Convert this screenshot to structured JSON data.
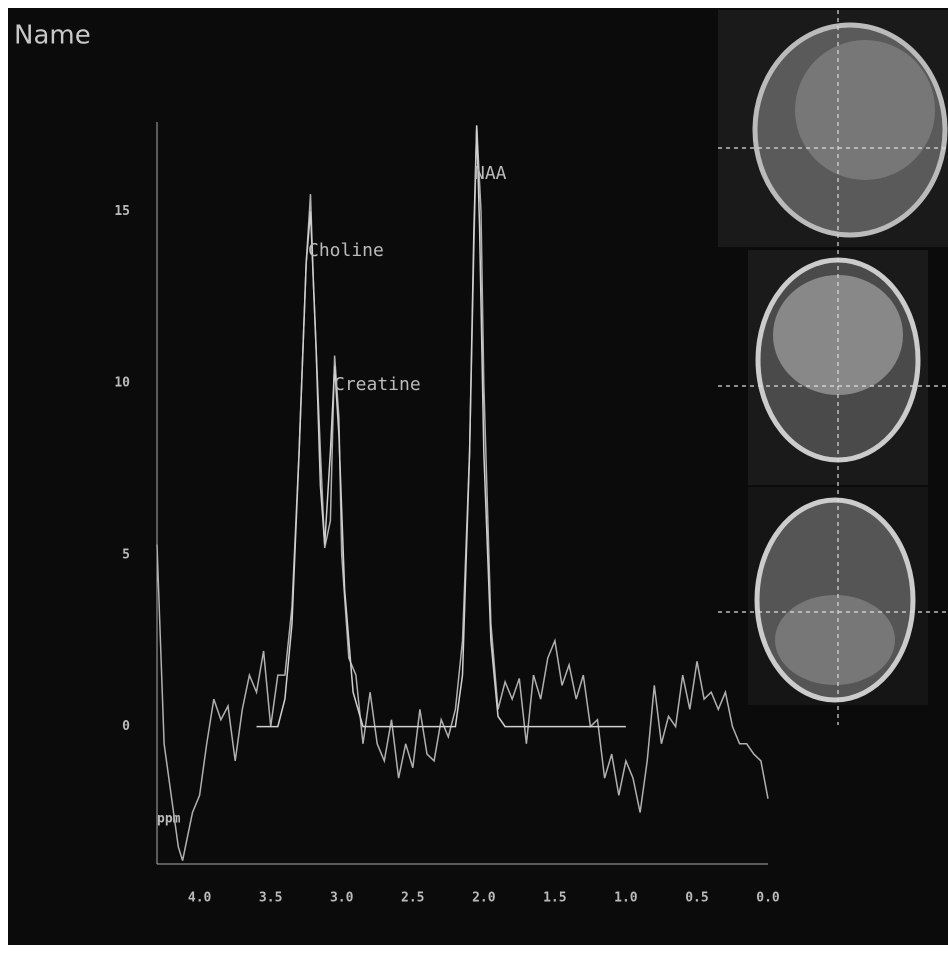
{
  "chart_data": {
    "type": "line",
    "title": "Name",
    "x_label": "ppm",
    "xlim": [
      4.3,
      0
    ],
    "ylim": [
      -4,
      17.6
    ],
    "xticks": [
      {
        "value": 4,
        "label": "4.0"
      },
      3.5,
      {
        "value": 3,
        "label": "3.0"
      },
      2.5,
      {
        "value": 2,
        "label": "2.0"
      },
      1.5,
      {
        "value": 1,
        "label": "1.0"
      },
      0.5,
      {
        "value": 0,
        "label": "0.0"
      }
    ],
    "yticks": [
      0,
      5,
      10,
      15
    ],
    "grid": false,
    "annotations": [
      "Choline",
      "Creatine",
      "NAA"
    ],
    "series": [
      {
        "color": "#b0b0b0",
        "x": [
          4.3,
          4.25,
          4.2,
          4.15,
          4.12,
          4.1,
          4.05,
          4.0,
          3.95,
          3.9,
          3.85,
          3.8,
          3.75,
          3.7,
          3.65,
          3.6,
          3.55,
          3.5,
          3.45,
          3.4,
          3.35,
          3.3,
          3.25,
          3.22,
          3.2,
          3.15,
          3.12,
          3.08,
          3.05,
          3.02,
          3.0,
          2.95,
          2.9,
          2.85,
          2.8,
          2.75,
          2.7,
          2.65,
          2.6,
          2.55,
          2.5,
          2.45,
          2.4,
          2.35,
          2.3,
          2.25,
          2.2,
          2.15,
          2.1,
          2.07,
          2.05,
          2.02,
          2.0,
          1.95,
          1.9,
          1.85,
          1.8,
          1.75,
          1.7,
          1.65,
          1.6,
          1.55,
          1.5,
          1.45,
          1.4,
          1.35,
          1.3,
          1.25,
          1.2,
          1.15,
          1.1,
          1.05,
          1.0,
          0.95,
          0.9,
          0.85,
          0.8,
          0.75,
          0.7,
          0.65,
          0.6,
          0.55,
          0.5,
          0.45,
          0.4,
          0.35,
          0.3,
          0.25,
          0.2,
          0.15,
          0.1,
          0.05,
          0.0
        ],
        "values": [
          5.3,
          -0.5,
          -2,
          -3.5,
          -3.9,
          -3.5,
          -2.5,
          -2,
          -0.5,
          0.8,
          0.2,
          0.6,
          -1,
          0.5,
          1.5,
          1.0,
          2.2,
          0,
          1.5,
          1.5,
          3.5,
          8,
          13.5,
          15.5,
          13,
          8,
          5.2,
          6,
          10.8,
          9,
          5,
          2,
          1.5,
          -0.5,
          1.0,
          -0.5,
          -1.0,
          0.2,
          -1.5,
          -0.5,
          -1.2,
          0.5,
          -0.8,
          -1.0,
          0.2,
          -0.3,
          0.5,
          2.5,
          8,
          14,
          17.5,
          15,
          10,
          3,
          0.5,
          1.3,
          0.8,
          1.4,
          -0.5,
          1.5,
          0.8,
          2.0,
          2.5,
          1.2,
          1.8,
          0.8,
          1.5,
          0,
          0.2,
          -1.5,
          -0.8,
          -2,
          -1.0,
          -1.5,
          -2.5,
          -1.0,
          1.2,
          -0.5,
          0.3,
          0,
          1.5,
          0.5,
          1.9,
          0.8,
          1.0,
          0.5,
          1.0,
          0,
          -0.5,
          -0.5,
          -0.8,
          -1.0,
          -2.1
        ]
      },
      {
        "color": "#d0d0d0",
        "x": [
          3.6,
          3.45,
          3.4,
          3.35,
          3.3,
          3.25,
          3.22,
          3.18,
          3.15,
          3.12,
          3.08,
          3.05,
          3.02,
          2.98,
          2.92,
          2.85,
          2.2,
          2.15,
          2.1,
          2.07,
          2.05,
          2.03,
          2.0,
          1.95,
          1.9,
          1.85,
          1.0
        ],
        "values": [
          0,
          0,
          0.8,
          3,
          8,
          13.5,
          15,
          11,
          7,
          5.3,
          8,
          10.5,
          8.5,
          4,
          1,
          0,
          0,
          1.5,
          8,
          14.5,
          17.5,
          14.5,
          8,
          2.5,
          0.3,
          0,
          0
        ]
      }
    ]
  }
}
